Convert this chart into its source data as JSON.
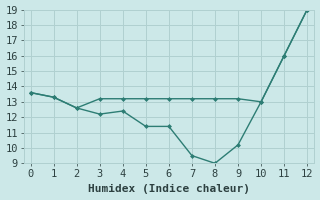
{
  "line1_x": [
    0,
    1,
    2,
    3,
    4,
    5,
    6,
    7,
    8,
    9,
    10,
    11,
    12
  ],
  "line1_y": [
    13.6,
    13.3,
    12.6,
    13.2,
    13.2,
    13.2,
    13.2,
    13.2,
    13.2,
    13.2,
    13.0,
    16.0,
    19.0
  ],
  "line2_x": [
    0,
    1,
    2,
    3,
    4,
    5,
    6,
    7,
    8,
    9,
    10,
    11,
    12
  ],
  "line2_y": [
    13.6,
    13.3,
    12.6,
    12.2,
    12.4,
    11.4,
    11.4,
    9.5,
    9.0,
    10.2,
    13.0,
    16.0,
    19.0
  ],
  "color": "#2d7d74",
  "xlabel": "Humidex (Indice chaleur)",
  "ylim": [
    9,
    19
  ],
  "xlim": [
    -0.3,
    12.3
  ],
  "yticks": [
    9,
    10,
    11,
    12,
    13,
    14,
    15,
    16,
    17,
    18,
    19
  ],
  "xticks": [
    0,
    1,
    2,
    3,
    4,
    5,
    6,
    7,
    8,
    9,
    10,
    11,
    12
  ],
  "bg_color": "#cce8e8",
  "grid_color": "#b0d0d0",
  "line_color": "#2d7d74",
  "tick_color": "#2d4040",
  "font_size": 7.5,
  "xlabel_font_size": 8.0
}
